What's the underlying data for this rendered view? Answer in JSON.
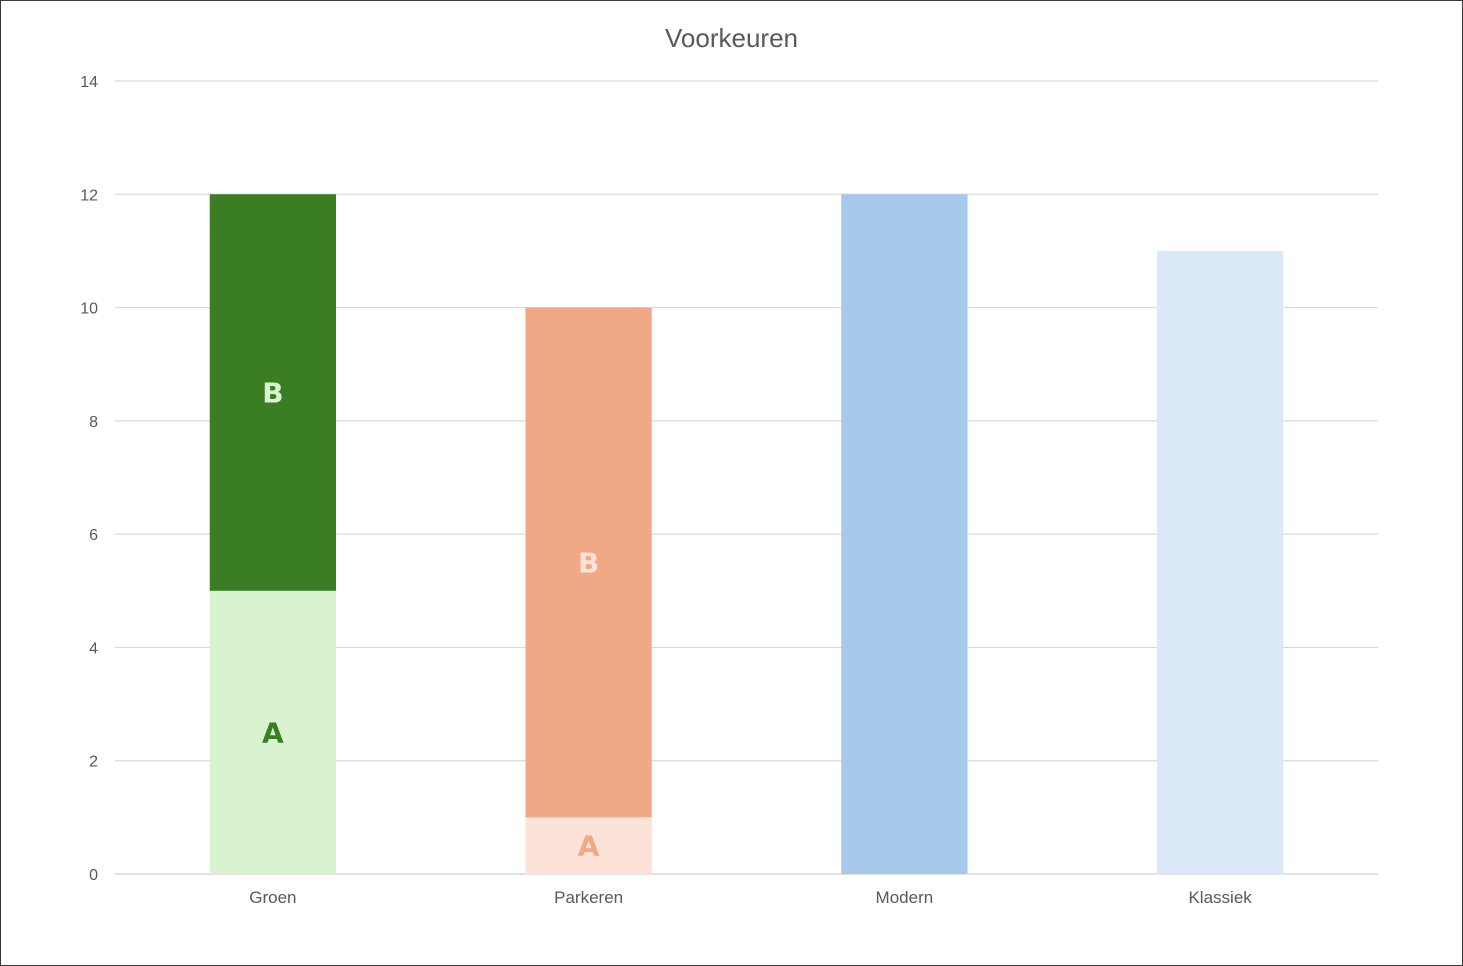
{
  "chart_data": {
    "type": "bar",
    "stacked": true,
    "title": "Voorkeuren",
    "xlabel": "",
    "ylabel": "",
    "ylim": [
      0,
      14
    ],
    "yticks": [
      0,
      2,
      4,
      6,
      8,
      10,
      12,
      14
    ],
    "grid": true,
    "legend": "none",
    "categories": [
      "Groen",
      "Parkeren",
      "Modern",
      "Klassiek"
    ],
    "bars": [
      {
        "category": "Groen",
        "segments": [
          {
            "value": 5,
            "label": "A",
            "color": "#d9f2d0",
            "label_color": "#3b7d23"
          },
          {
            "value": 7,
            "label": "B",
            "color": "#3b7d23",
            "label_color": "#d9f2d0"
          }
        ]
      },
      {
        "category": "Parkeren",
        "segments": [
          {
            "value": 1,
            "label": "A",
            "color": "#fce2d7",
            "label_color": "#f1a985"
          },
          {
            "value": 9,
            "label": "B",
            "color": "#f1a985",
            "label_color": "#fce2d7"
          }
        ]
      },
      {
        "category": "Modern",
        "segments": [
          {
            "value": 12,
            "label": "",
            "color": "#a6c9eb",
            "label_color": ""
          }
        ]
      },
      {
        "category": "Klassiek",
        "segments": [
          {
            "value": 11,
            "label": "",
            "color": "#dbe8f7",
            "label_color": ""
          }
        ]
      }
    ],
    "colors": {
      "grid": "#d9d9d9",
      "axis": "#d0d0d0",
      "text": "#595959"
    }
  }
}
